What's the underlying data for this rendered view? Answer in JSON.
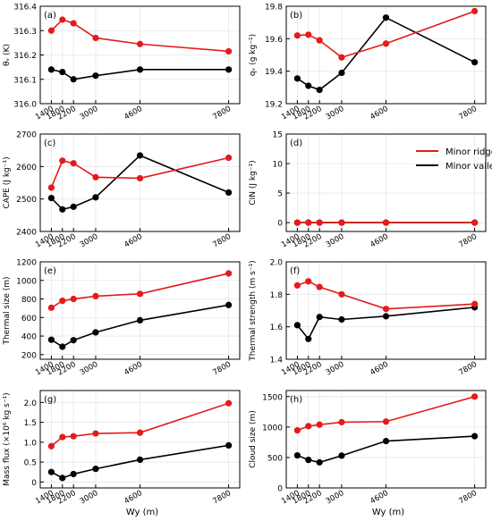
{
  "xlabel": "Wy (m)",
  "xticks": [
    "1400",
    "1800",
    "2200",
    "3000",
    "4600",
    "7800"
  ],
  "legend": {
    "ridge": "Minor ridge",
    "valley": "Minor valley"
  },
  "colors": {
    "ridge": "#e41a1c",
    "valley": "#000000"
  },
  "chart_data": [
    {
      "type": "line",
      "panel": "(a)",
      "ylabel": "θᵥ (K)",
      "ylim": [
        316.0,
        316.4
      ],
      "yticks": [
        "316.0",
        "316.1",
        "316.2",
        "316.3",
        "316.4"
      ],
      "yticks_val": [
        316.0,
        316.1,
        316.2,
        316.3,
        316.4
      ],
      "x": [
        1400,
        1800,
        2200,
        3000,
        4600,
        7800
      ],
      "series": [
        {
          "name": "Minor ridge",
          "values": [
            316.3,
            316.345,
            316.33,
            316.27,
            316.245,
            316.215
          ]
        },
        {
          "name": "Minor valley",
          "values": [
            316.14,
            316.13,
            316.1,
            316.115,
            316.14,
            316.14
          ]
        }
      ]
    },
    {
      "type": "line",
      "panel": "(b)",
      "ylabel": "qᵥ (g kg⁻¹)",
      "ylim": [
        19.2,
        19.8
      ],
      "yticks": [
        "19.2",
        "19.4",
        "19.6",
        "19.8"
      ],
      "yticks_val": [
        19.2,
        19.4,
        19.6,
        19.8
      ],
      "x": [
        1400,
        1800,
        2200,
        3000,
        4600,
        7800
      ],
      "series": [
        {
          "name": "Minor ridge",
          "values": [
            19.62,
            19.625,
            19.59,
            19.485,
            19.57,
            19.77
          ]
        },
        {
          "name": "Minor valley",
          "values": [
            19.355,
            19.31,
            19.285,
            19.39,
            19.73,
            19.455
          ]
        }
      ]
    },
    {
      "type": "line",
      "panel": "(c)",
      "ylabel": "CAPE (J kg⁻¹)",
      "ylim": [
        2400,
        2700
      ],
      "yticks": [
        "2400",
        "2500",
        "2600",
        "2700"
      ],
      "yticks_val": [
        2400,
        2500,
        2600,
        2700
      ],
      "x": [
        1400,
        1800,
        2200,
        3000,
        4600,
        7800
      ],
      "series": [
        {
          "name": "Minor ridge",
          "values": [
            2535,
            2618,
            2610,
            2567,
            2564,
            2627
          ]
        },
        {
          "name": "Minor valley",
          "values": [
            2503,
            2468,
            2476,
            2505,
            2634,
            2520
          ]
        }
      ]
    },
    {
      "type": "line",
      "panel": "(d)",
      "ylabel": "CIN (J kg⁻¹)",
      "ylim": [
        -1.5,
        15
      ],
      "yticks": [
        "0",
        "5",
        "10",
        "15"
      ],
      "yticks_val": [
        0,
        5,
        10,
        15
      ],
      "x": [
        1400,
        1800,
        2200,
        3000,
        4600,
        7800
      ],
      "series": [
        {
          "name": "Minor ridge",
          "values": [
            0,
            0,
            0,
            0,
            0,
            0
          ]
        },
        {
          "name": "Minor valley",
          "values": [
            0,
            0,
            0,
            0,
            0,
            0
          ]
        }
      ]
    },
    {
      "type": "line",
      "panel": "(e)",
      "ylabel": "Thermal size (m)",
      "ylim": [
        150,
        1200
      ],
      "yticks": [
        "200",
        "400",
        "600",
        "800",
        "1000",
        "1200"
      ],
      "yticks_val": [
        200,
        400,
        600,
        800,
        1000,
        1200
      ],
      "x": [
        1400,
        1800,
        2200,
        3000,
        4600,
        7800
      ],
      "series": [
        {
          "name": "Minor ridge",
          "values": [
            705,
            780,
            800,
            830,
            855,
            1075
          ]
        },
        {
          "name": "Minor valley",
          "values": [
            360,
            285,
            355,
            440,
            570,
            735
          ]
        }
      ]
    },
    {
      "type": "line",
      "panel": "(f)",
      "ylabel": "Thermal strength (m s⁻¹)",
      "ylim": [
        1.4,
        2.0
      ],
      "yticks": [
        "1.4",
        "1.6",
        "1.8",
        "2.0"
      ],
      "yticks_val": [
        1.4,
        1.6,
        1.8,
        2.0
      ],
      "x": [
        1400,
        1800,
        2200,
        3000,
        4600,
        7800
      ],
      "series": [
        {
          "name": "Minor ridge",
          "values": [
            1.855,
            1.88,
            1.845,
            1.8,
            1.71,
            1.74
          ]
        },
        {
          "name": "Minor valley",
          "values": [
            1.61,
            1.525,
            1.66,
            1.645,
            1.665,
            1.72
          ]
        }
      ]
    },
    {
      "type": "line",
      "panel": "(g)",
      "ylabel": "Mass flux (×10⁶ kg s⁻¹)",
      "ylim": [
        -0.15,
        2.3
      ],
      "yticks": [
        "0",
        "0.5",
        "1.0",
        "1.5",
        "2.0"
      ],
      "yticks_val": [
        0,
        0.5,
        1.0,
        1.5,
        2.0
      ],
      "x": [
        1400,
        1800,
        2200,
        3000,
        4600,
        7800
      ],
      "series": [
        {
          "name": "Minor ridge",
          "values": [
            0.9,
            1.13,
            1.15,
            1.22,
            1.24,
            1.98
          ]
        },
        {
          "name": "Minor valley",
          "values": [
            0.25,
            0.1,
            0.2,
            0.33,
            0.56,
            0.92
          ]
        }
      ]
    },
    {
      "type": "line",
      "panel": "(h)",
      "ylabel": "Cloud size (m)",
      "ylim": [
        0,
        1600
      ],
      "yticks": [
        "0",
        "500",
        "1000",
        "1500"
      ],
      "yticks_val": [
        0,
        500,
        1000,
        1500
      ],
      "x": [
        1400,
        1800,
        2200,
        3000,
        4600,
        7800
      ],
      "series": [
        {
          "name": "Minor ridge",
          "values": [
            945,
            1015,
            1040,
            1080,
            1090,
            1500
          ]
        },
        {
          "name": "Minor valley",
          "values": [
            535,
            460,
            420,
            530,
            770,
            850
          ]
        }
      ]
    }
  ]
}
